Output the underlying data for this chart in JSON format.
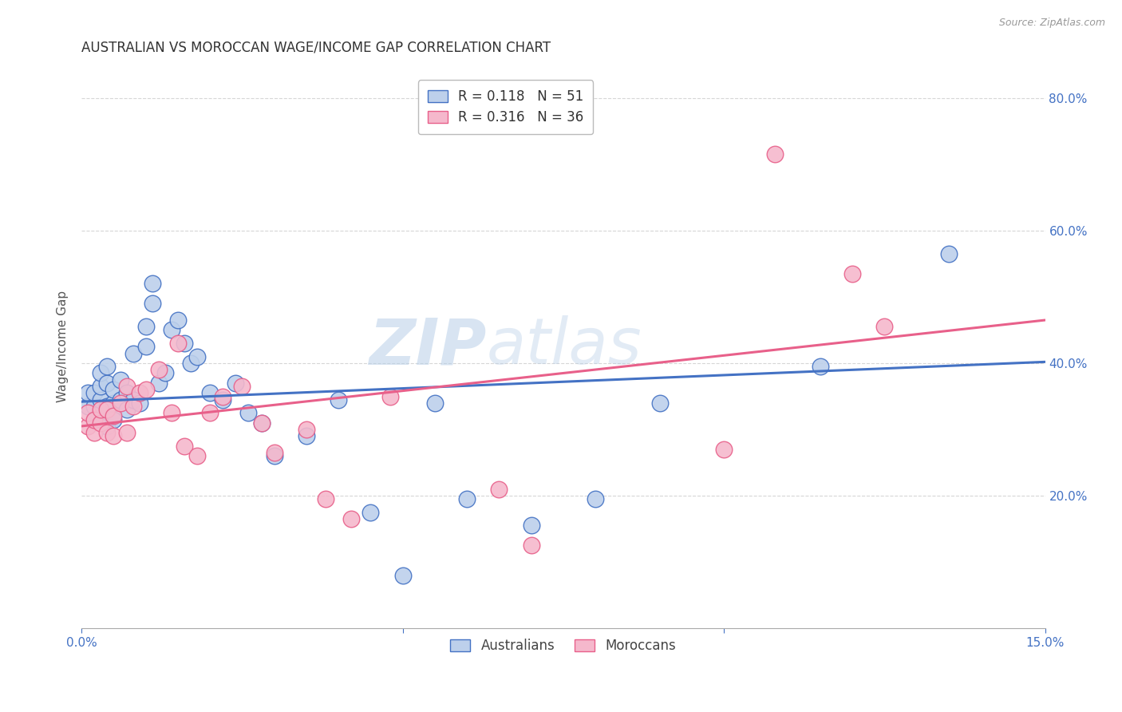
{
  "title": "AUSTRALIAN VS MOROCCAN WAGE/INCOME GAP CORRELATION CHART",
  "source": "Source: ZipAtlas.com",
  "ylabel_label": "Wage/Income Gap",
  "xlim": [
    0.0,
    0.15
  ],
  "ylim": [
    0.0,
    0.85
  ],
  "xticks": [
    0.0,
    0.05,
    0.1,
    0.15
  ],
  "xtick_labels": [
    "0.0%",
    "",
    "",
    "15.0%"
  ],
  "ytick_labels": [
    "20.0%",
    "40.0%",
    "60.0%",
    "80.0%"
  ],
  "yticks": [
    0.2,
    0.4,
    0.6,
    0.8
  ],
  "blue_color": "#4472C4",
  "pink_color": "#e8608a",
  "blue_fill": "#bdd0eb",
  "pink_fill": "#f5b8cc",
  "axis_color": "#4472C4",
  "grid_color": "#cccccc",
  "watermark_text": "ZIP",
  "watermark_text2": "atlas",
  "title_fontsize": 12,
  "label_fontsize": 11,
  "tick_fontsize": 11,
  "blue_scatter_x": [
    0.001,
    0.001,
    0.002,
    0.002,
    0.002,
    0.003,
    0.003,
    0.003,
    0.003,
    0.004,
    0.004,
    0.004,
    0.004,
    0.005,
    0.005,
    0.005,
    0.006,
    0.006,
    0.007,
    0.007,
    0.008,
    0.008,
    0.009,
    0.01,
    0.01,
    0.011,
    0.011,
    0.012,
    0.013,
    0.014,
    0.015,
    0.016,
    0.017,
    0.018,
    0.02,
    0.022,
    0.024,
    0.026,
    0.028,
    0.03,
    0.035,
    0.04,
    0.045,
    0.05,
    0.055,
    0.06,
    0.07,
    0.08,
    0.09,
    0.115,
    0.135
  ],
  "blue_scatter_y": [
    0.335,
    0.355,
    0.315,
    0.335,
    0.355,
    0.325,
    0.345,
    0.365,
    0.385,
    0.305,
    0.335,
    0.37,
    0.395,
    0.315,
    0.34,
    0.36,
    0.345,
    0.375,
    0.33,
    0.355,
    0.345,
    0.415,
    0.34,
    0.425,
    0.455,
    0.49,
    0.52,
    0.37,
    0.385,
    0.45,
    0.465,
    0.43,
    0.4,
    0.41,
    0.355,
    0.345,
    0.37,
    0.325,
    0.31,
    0.26,
    0.29,
    0.345,
    0.175,
    0.08,
    0.34,
    0.195,
    0.155,
    0.195,
    0.34,
    0.395,
    0.565
  ],
  "pink_scatter_x": [
    0.001,
    0.001,
    0.002,
    0.002,
    0.003,
    0.003,
    0.004,
    0.004,
    0.005,
    0.005,
    0.006,
    0.007,
    0.007,
    0.008,
    0.009,
    0.01,
    0.012,
    0.014,
    0.015,
    0.016,
    0.018,
    0.02,
    0.022,
    0.025,
    0.028,
    0.03,
    0.035,
    0.038,
    0.042,
    0.048,
    0.065,
    0.07,
    0.1,
    0.108,
    0.12,
    0.125
  ],
  "pink_scatter_y": [
    0.305,
    0.325,
    0.295,
    0.315,
    0.31,
    0.33,
    0.295,
    0.33,
    0.29,
    0.32,
    0.34,
    0.295,
    0.365,
    0.335,
    0.355,
    0.36,
    0.39,
    0.325,
    0.43,
    0.275,
    0.26,
    0.325,
    0.35,
    0.365,
    0.31,
    0.265,
    0.3,
    0.195,
    0.165,
    0.35,
    0.21,
    0.125,
    0.27,
    0.715,
    0.535,
    0.455
  ],
  "blue_trend_x": [
    0.0,
    0.15
  ],
  "blue_trend_y": [
    0.342,
    0.402
  ],
  "pink_trend_x": [
    0.0,
    0.15
  ],
  "pink_trend_y": [
    0.305,
    0.465
  ],
  "legend_R_blue": "0.118",
  "legend_N_blue": "51",
  "legend_R_pink": "0.316",
  "legend_N_pink": "36"
}
